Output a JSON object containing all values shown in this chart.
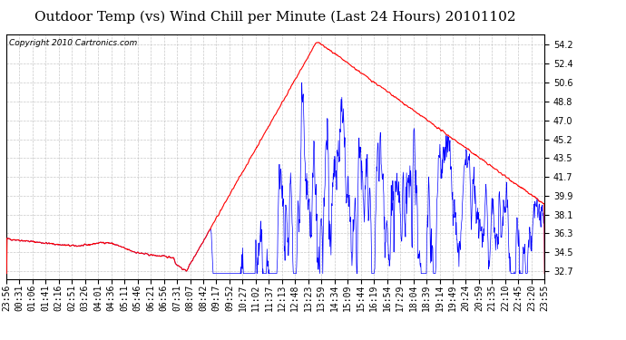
{
  "title": "Outdoor Temp (vs) Wind Chill per Minute (Last 24 Hours) 20101102",
  "copyright": "Copyright 2010 Cartronics.com",
  "yticks": [
    32.7,
    34.5,
    36.3,
    38.1,
    39.9,
    41.7,
    43.5,
    45.2,
    47.0,
    48.8,
    50.6,
    52.4,
    54.2
  ],
  "ylim": [
    32.0,
    55.2
  ],
  "xtick_labels": [
    "23:56",
    "00:31",
    "01:06",
    "01:41",
    "02:16",
    "02:51",
    "03:26",
    "04:01",
    "04:36",
    "05:11",
    "05:46",
    "06:21",
    "06:56",
    "07:31",
    "08:07",
    "08:42",
    "09:17",
    "09:52",
    "10:27",
    "11:02",
    "11:37",
    "12:13",
    "12:48",
    "13:23",
    "13:59",
    "14:34",
    "15:09",
    "15:44",
    "16:19",
    "16:54",
    "17:29",
    "18:04",
    "18:39",
    "19:14",
    "19:49",
    "20:24",
    "20:59",
    "21:35",
    "22:10",
    "22:45",
    "23:20",
    "23:55"
  ],
  "outer_temp_color": "#FF0000",
  "wind_chill_color": "#0000FF",
  "background_color": "#FFFFFF",
  "grid_color": "#BBBBBB",
  "title_fontsize": 11,
  "tick_fontsize": 7,
  "copyright_fontsize": 6.5
}
